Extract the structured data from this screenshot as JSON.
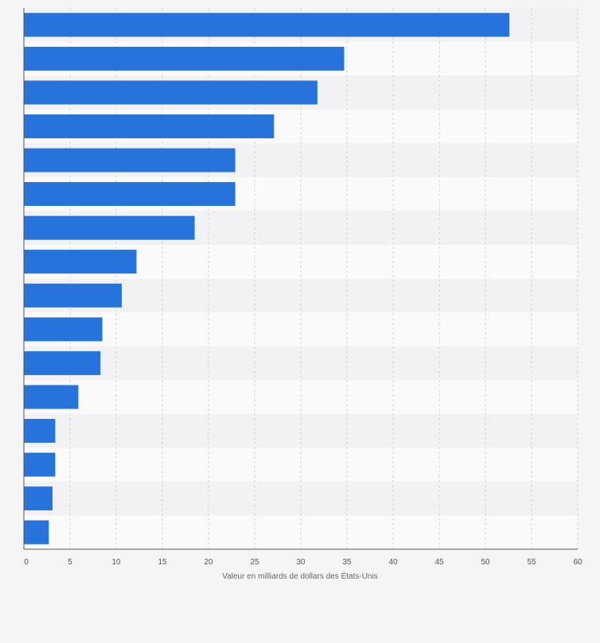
{
  "chart_data": {
    "type": "bar",
    "orientation": "horizontal",
    "xlabel": "Valeur en milliards de dollars des États-Unis",
    "xlim": [
      0,
      60
    ],
    "xticks": [
      0,
      5,
      10,
      15,
      20,
      25,
      30,
      35,
      40,
      45,
      50,
      55,
      60
    ],
    "grid": true,
    "series": [
      {
        "color": "#2673dc",
        "values": [
          52.6,
          34.7,
          31.8,
          27.1,
          22.9,
          22.9,
          18.5,
          12.2,
          10.6,
          8.5,
          8.3,
          5.9,
          3.4,
          3.4,
          3.1,
          2.7
        ]
      }
    ],
    "colors": {
      "bar": "#2673dc",
      "row_band_light": "#fafafb",
      "row_band_dark": "#f2f2f4",
      "grid": "#d6d6d9",
      "axis": "#555555"
    }
  }
}
